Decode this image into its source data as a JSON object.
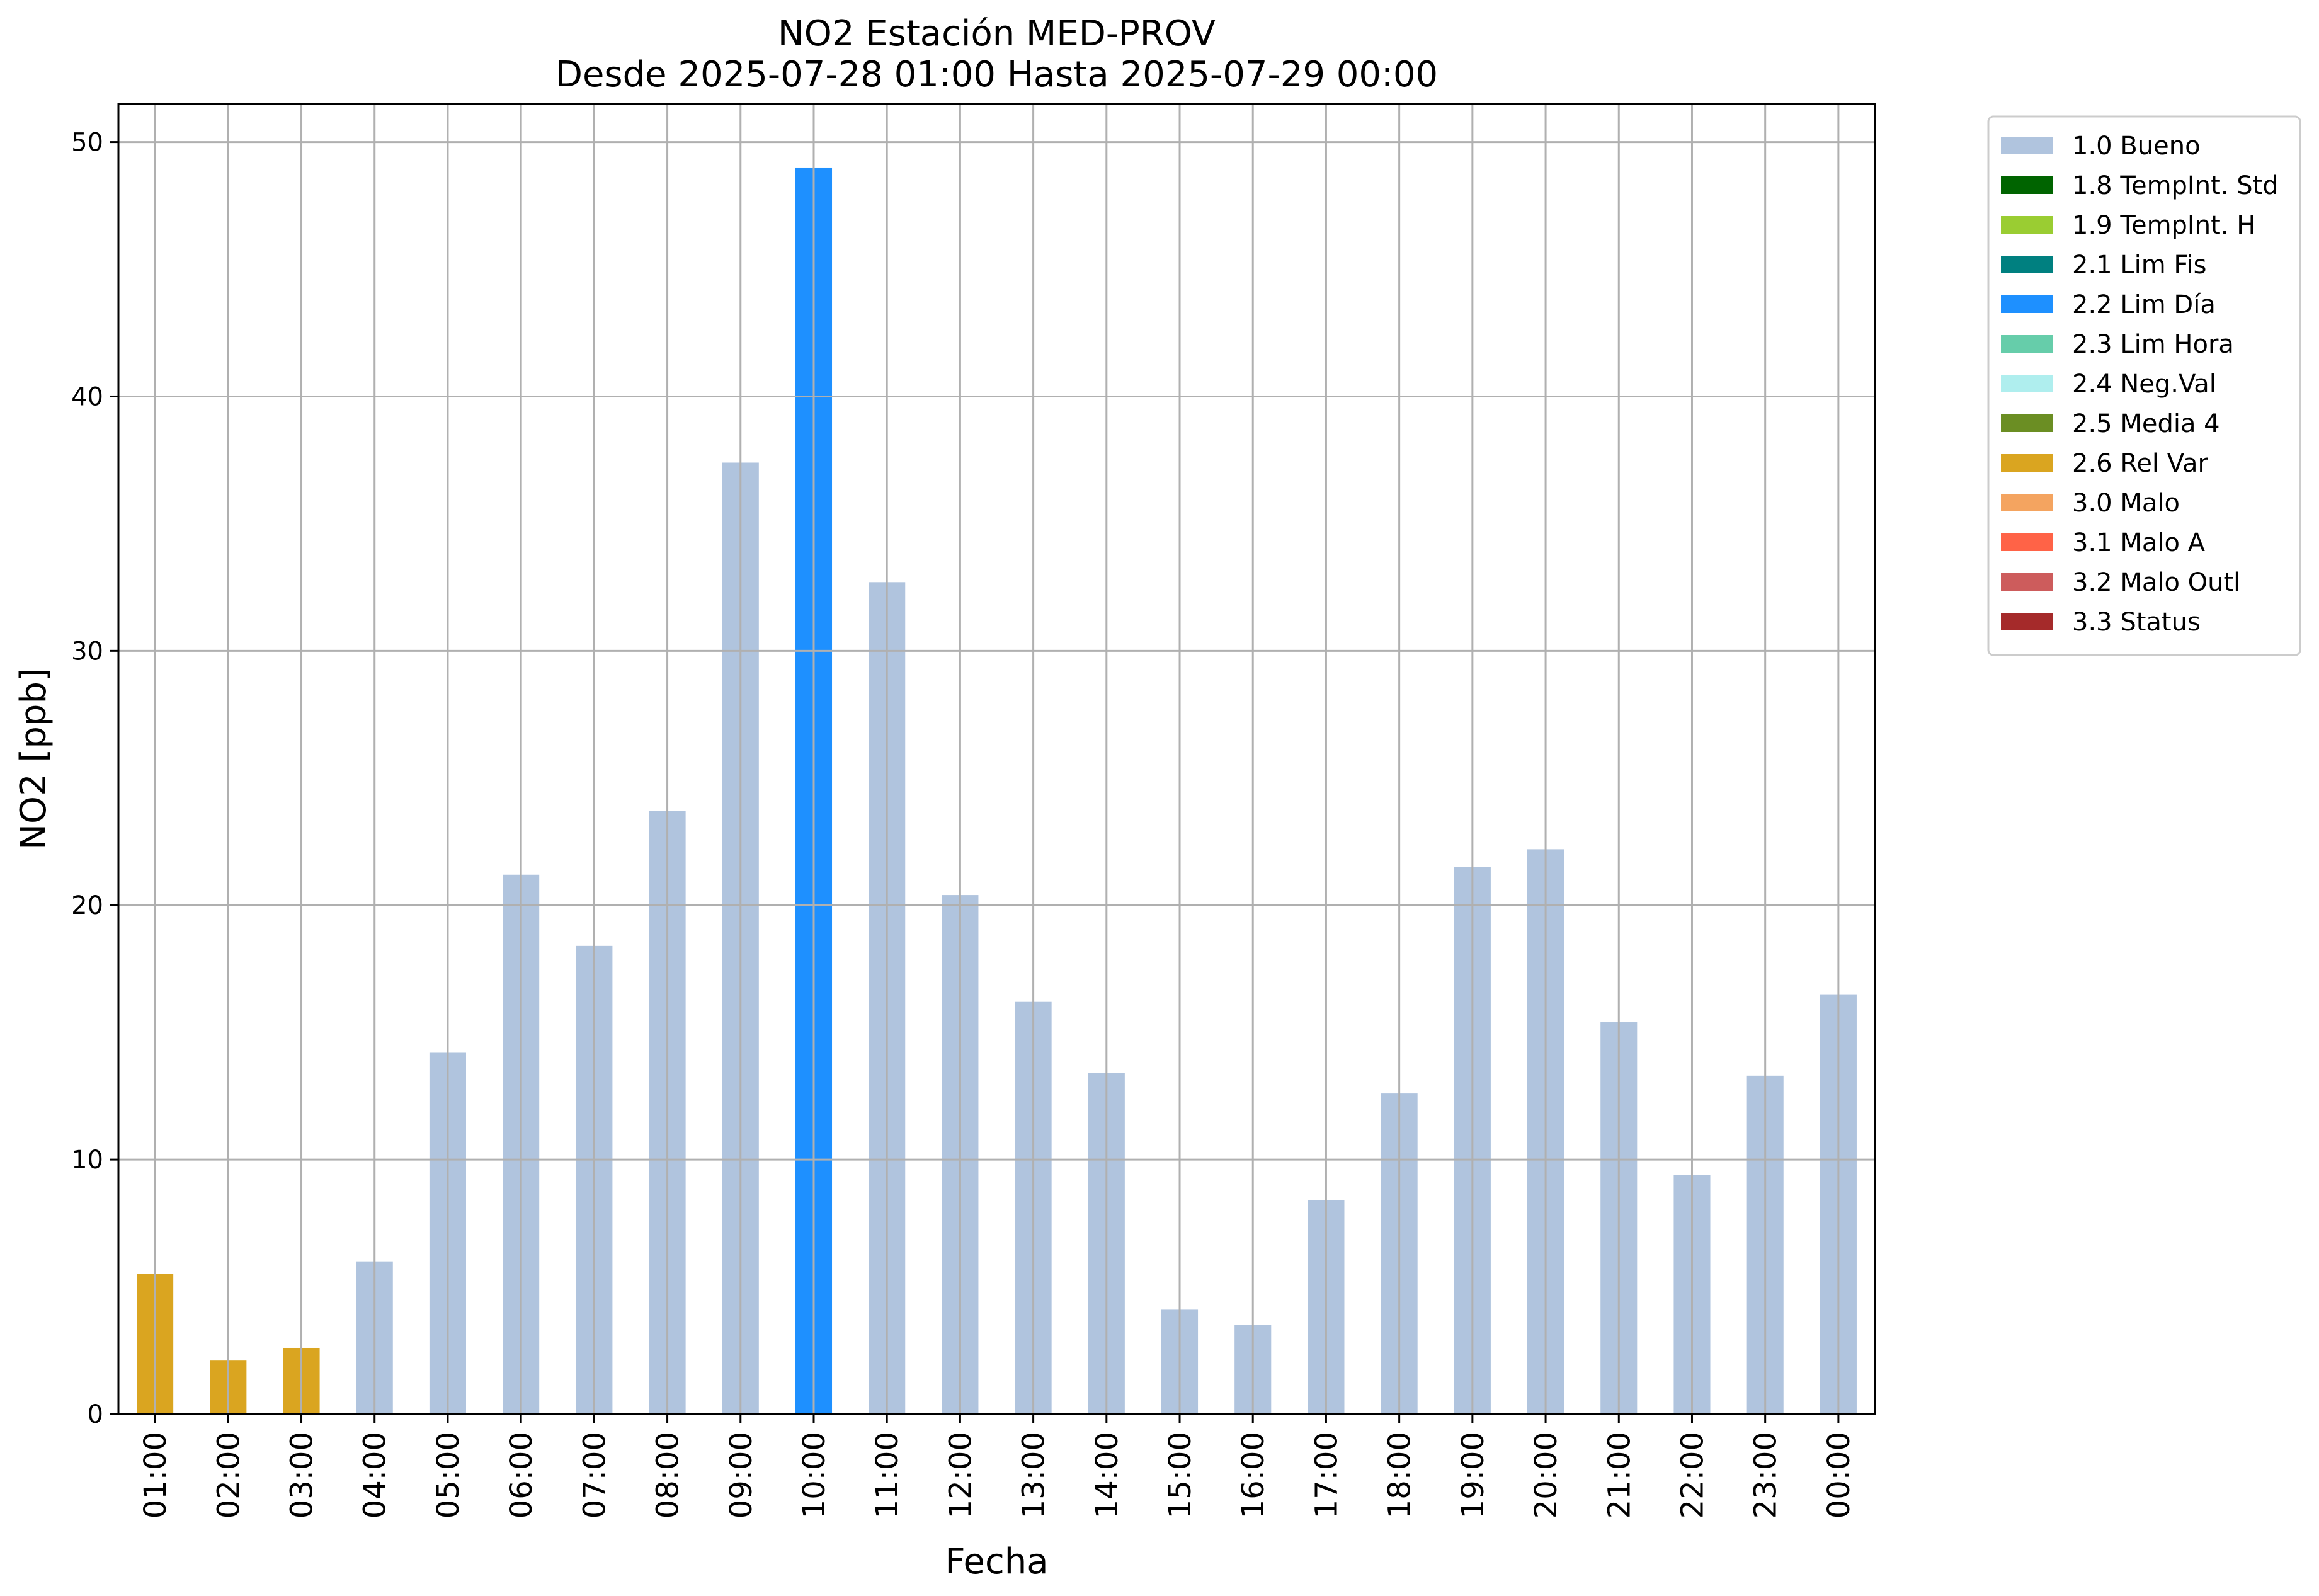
{
  "chart_data": {
    "type": "bar",
    "title": "NO2 Estación MED-PROV",
    "subtitle": "Desde 2025-07-28 01:00 Hasta 2025-07-29 00:00",
    "xlabel": "Fecha",
    "ylabel": "NO2 [ppb]",
    "ylim": [
      0,
      51.5
    ],
    "yticks": [
      0,
      10,
      20,
      30,
      40,
      50
    ],
    "grid": true,
    "legend_position": "outside-top-right",
    "categories": [
      "01:00",
      "02:00",
      "03:00",
      "04:00",
      "05:00",
      "06:00",
      "07:00",
      "08:00",
      "09:00",
      "10:00",
      "11:00",
      "12:00",
      "13:00",
      "14:00",
      "15:00",
      "16:00",
      "17:00",
      "18:00",
      "19:00",
      "20:00",
      "21:00",
      "22:00",
      "23:00",
      "00:00"
    ],
    "values": [
      5.5,
      2.1,
      2.6,
      6.0,
      14.2,
      21.2,
      18.4,
      23.7,
      37.4,
      49.0,
      32.7,
      20.4,
      16.2,
      13.4,
      4.1,
      3.5,
      8.4,
      12.6,
      21.5,
      22.2,
      15.4,
      9.4,
      13.3,
      16.5
    ],
    "flags": [
      "2.6 Rel Var",
      "2.6 Rel Var",
      "2.6 Rel Var",
      "1.0 Bueno",
      "1.0 Bueno",
      "1.0 Bueno",
      "1.0 Bueno",
      "1.0 Bueno",
      "1.0 Bueno",
      "2.2 Lim Día",
      "1.0 Bueno",
      "1.0 Bueno",
      "1.0 Bueno",
      "1.0 Bueno",
      "1.0 Bueno",
      "1.0 Bueno",
      "1.0 Bueno",
      "1.0 Bueno",
      "1.0 Bueno",
      "1.0 Bueno",
      "1.0 Bueno",
      "1.0 Bueno",
      "1.0 Bueno",
      "1.0 Bueno"
    ],
    "legend": [
      {
        "label": "1.0 Bueno",
        "color": "#b0c4de"
      },
      {
        "label": "1.8 TempInt. Std",
        "color": "#006400"
      },
      {
        "label": "1.9 TempInt. H",
        "color": "#9acd32"
      },
      {
        "label": "2.1 Lim Fis",
        "color": "#008080"
      },
      {
        "label": "2.2 Lim Día",
        "color": "#1e90ff"
      },
      {
        "label": "2.3 Lim Hora",
        "color": "#66cdaa"
      },
      {
        "label": "2.4 Neg.Val",
        "color": "#afeeee"
      },
      {
        "label": "2.5 Media 4",
        "color": "#6b8e23"
      },
      {
        "label": "2.6 Rel Var",
        "color": "#daa520"
      },
      {
        "label": "3.0 Malo",
        "color": "#f4a460"
      },
      {
        "label": "3.1 Malo A",
        "color": "#ff6347"
      },
      {
        "label": "3.2 Malo Outl",
        "color": "#cd5c5c"
      },
      {
        "label": "3.3 Status",
        "color": "#a52a2a"
      }
    ]
  }
}
